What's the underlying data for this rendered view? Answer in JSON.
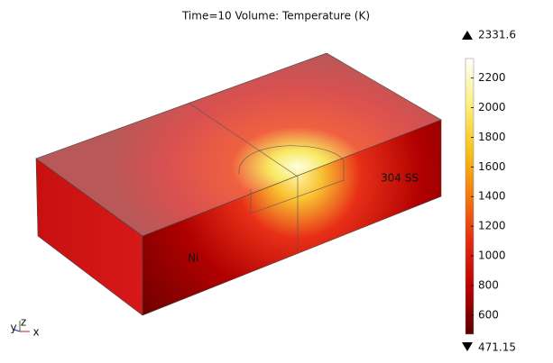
{
  "chart_data": {
    "type": "surface",
    "title": "Time=10   Volume: Temperature (K)",
    "colorbar_range": [
      471.15,
      2331.6
    ],
    "colorbar_ticks": [
      600,
      800,
      1000,
      1200,
      1400,
      1600,
      1800,
      2000,
      2200
    ],
    "colormap": [
      "#5a0000",
      "#b80000",
      "#e32a10",
      "#f27a10",
      "#f8c21a",
      "#fbf07a",
      "#ffffff"
    ],
    "annotations": [
      "Ni",
      "304 SS"
    ],
    "axis_triad": [
      "y",
      "z",
      "x"
    ]
  }
}
